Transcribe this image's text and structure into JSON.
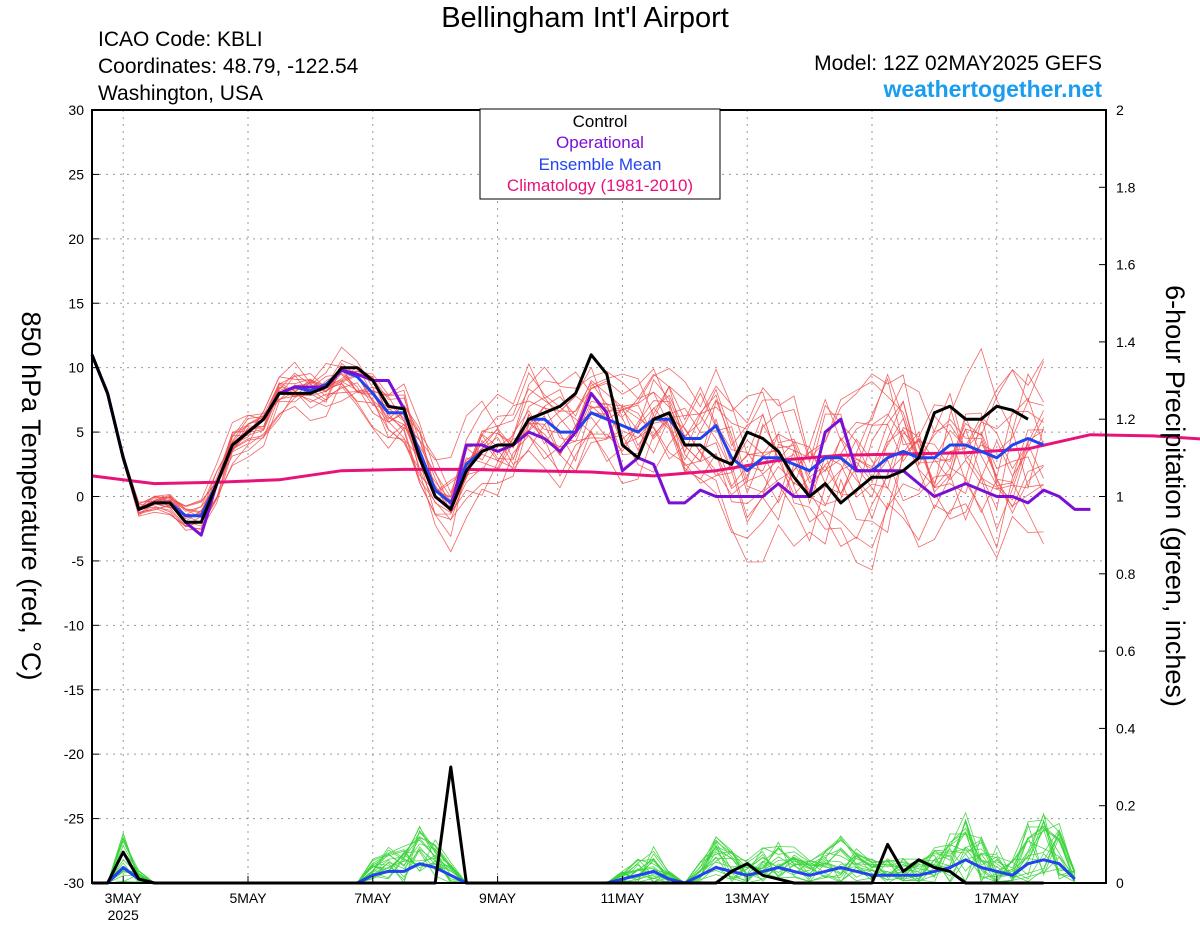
{
  "header": {
    "title": "Bellingham Int'l Airport",
    "icao": "ICAO Code: KBLI",
    "coordinates": "Coordinates: 48.79, -122.54",
    "region": "Washington, USA",
    "model": "Model: 12Z 02MAY2025 GEFS",
    "site": "weathertogether.net"
  },
  "colors": {
    "control": "#000000",
    "operational": "#7b0fd4",
    "ensemble_mean": "#2244ee",
    "climatology": "#e8137a",
    "ensemble_temp": "#f04b4b",
    "ensemble_precip": "#39d439"
  },
  "chart_data": {
    "type": "line",
    "ylabel": "850 hPa Temperature (red, °C)",
    "y2label": "6-hour Precipitation (green, inches)",
    "ylim": [
      -30,
      30
    ],
    "yticks": [
      -30,
      -25,
      -20,
      -15,
      -10,
      -5,
      0,
      5,
      10,
      15,
      20,
      25,
      30
    ],
    "y2lim": [
      0,
      2
    ],
    "y2ticks": [
      0,
      0.2,
      0.4,
      0.6,
      0.8,
      1,
      1.2,
      1.4,
      1.6,
      1.8,
      2
    ],
    "xlim_hours": [
      0,
      390
    ],
    "xticks": [
      {
        "hour": 12,
        "label": "3MAY",
        "sub": "2025"
      },
      {
        "hour": 60,
        "label": "5MAY",
        "sub": ""
      },
      {
        "hour": 108,
        "label": "7MAY",
        "sub": ""
      },
      {
        "hour": 156,
        "label": "9MAY",
        "sub": ""
      },
      {
        "hour": 204,
        "label": "11MAY",
        "sub": ""
      },
      {
        "hour": 252,
        "label": "13MAY",
        "sub": ""
      },
      {
        "hour": 300,
        "label": "15MAY",
        "sub": ""
      },
      {
        "hour": 348,
        "label": "17MAY",
        "sub": ""
      }
    ],
    "grid": true,
    "legend": {
      "position": "top-center",
      "entries": [
        "Control",
        "Operational",
        "Ensemble Mean",
        "Climatology (1981-2010)"
      ]
    },
    "series": [
      {
        "name": "Control",
        "axis": "temperature",
        "step_hours": 6,
        "values": [
          11,
          8,
          3,
          -1,
          -0.5,
          -0.5,
          -2,
          -2,
          1,
          4,
          5,
          6,
          8,
          8,
          8,
          8.5,
          10,
          10,
          9,
          7,
          6.8,
          3,
          0,
          -1,
          2,
          3.5,
          4,
          4,
          6,
          6.5,
          7,
          8,
          11,
          9.5,
          4,
          3,
          6,
          6.5,
          4,
          4,
          3,
          2.5,
          5,
          4.5,
          3.5,
          1.5,
          0,
          1,
          -0.5,
          0.5,
          1.5,
          1.5,
          2,
          3,
          6.5,
          7,
          6,
          6,
          7,
          6.7,
          6
        ]
      },
      {
        "name": "Operational",
        "axis": "temperature",
        "step_hours": 6,
        "values": [
          11,
          8,
          3,
          -1,
          -0.5,
          -0.5,
          -2,
          -3,
          1,
          4,
          5,
          6,
          8,
          8.5,
          8.5,
          8.5,
          9.8,
          9.5,
          9,
          9,
          6.8,
          3,
          0,
          -1,
          4,
          4,
          3.5,
          4,
          5,
          4.5,
          3.5,
          5,
          8,
          6.5,
          2,
          3,
          2.5,
          -0.5,
          -0.5,
          0.5,
          0,
          0,
          0,
          0,
          1,
          0,
          0,
          5,
          6,
          2,
          2,
          2,
          2,
          1,
          0,
          0.5,
          1,
          0.5,
          0,
          0,
          -0.5,
          0.5,
          0,
          -1,
          -1
        ]
      },
      {
        "name": "Ensemble Mean",
        "axis": "temperature",
        "step_hours": 6,
        "values": [
          11,
          8,
          3,
          -1,
          -0.5,
          -0.5,
          -1.5,
          -1.5,
          1,
          4,
          5,
          6,
          8,
          8.5,
          8.2,
          8.7,
          9.8,
          9.3,
          8,
          6.5,
          6.5,
          3.5,
          0.5,
          -0.5,
          2.5,
          3.5,
          4,
          4,
          6,
          6,
          5,
          5,
          6.5,
          6,
          5.5,
          5,
          6,
          6,
          4.5,
          4.5,
          5.5,
          3,
          2,
          3,
          3,
          2.5,
          2,
          3,
          3,
          2,
          2,
          3,
          3.5,
          3,
          3,
          4,
          4,
          3.5,
          3,
          4,
          4.5,
          4
        ]
      },
      {
        "name": "Climatology (1981-2010)",
        "axis": "temperature",
        "step_hours": 24,
        "values": [
          1.6,
          1,
          1.1,
          1.3,
          2,
          2.1,
          2.1,
          2,
          1.9,
          1.6,
          2,
          2.8,
          3.2,
          3.3,
          3.4,
          3.7,
          4.8,
          4.7,
          4.4
        ]
      },
      {
        "name": "Control",
        "axis": "precipitation",
        "step_hours": 6,
        "values": [
          0,
          0,
          0.08,
          0.01,
          0,
          0,
          0,
          0,
          0,
          0,
          0,
          0,
          0,
          0,
          0,
          0,
          0,
          0,
          0,
          0,
          0,
          0,
          0,
          0.3,
          0,
          0,
          0,
          0,
          0,
          0,
          0,
          0,
          0,
          0,
          0,
          0,
          0,
          0,
          0,
          0,
          0,
          0.03,
          0.05,
          0.02,
          0.01,
          0,
          0,
          0,
          0,
          0,
          0,
          0.1,
          0.03,
          0.06,
          0.04,
          0.03,
          0,
          0,
          0,
          0,
          0,
          0
        ]
      },
      {
        "name": "Ensemble Mean",
        "axis": "precipitation",
        "step_hours": 6,
        "values": [
          0,
          0,
          0.04,
          0.01,
          0,
          0,
          0,
          0,
          0,
          0,
          0,
          0,
          0,
          0,
          0,
          0,
          0,
          0,
          0.02,
          0.03,
          0.03,
          0.05,
          0.04,
          0.02,
          0,
          0,
          0,
          0,
          0,
          0,
          0,
          0,
          0,
          0,
          0.01,
          0.02,
          0.03,
          0.01,
          0,
          0.02,
          0.04,
          0.03,
          0.02,
          0.03,
          0.04,
          0.03,
          0.02,
          0.03,
          0.04,
          0.03,
          0.02,
          0.02,
          0.02,
          0.02,
          0.03,
          0.04,
          0.06,
          0.04,
          0.03,
          0.02,
          0.05,
          0.06,
          0.05,
          0.01
        ]
      }
    ]
  }
}
